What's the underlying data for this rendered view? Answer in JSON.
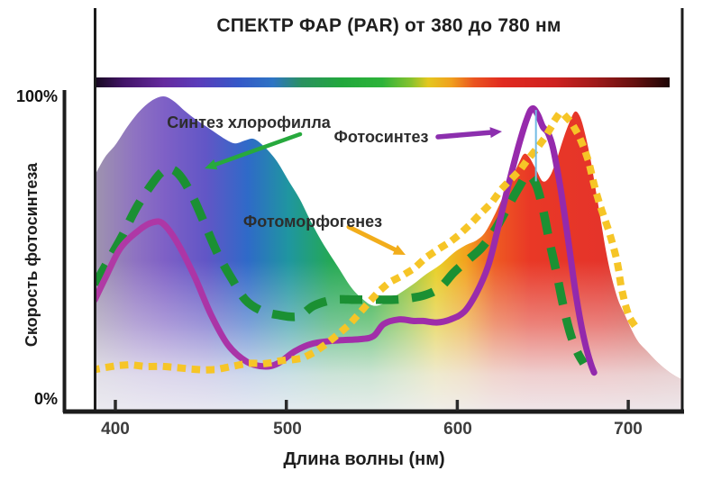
{
  "title": "СПЕКТР ФАР (PAR) от 380 до 780 нм",
  "y_axis": {
    "title": "Скорость фотосинтеза",
    "top_label": "100%",
    "bottom_label": "0%"
  },
  "x_axis": {
    "title": "Длина волны (нм)",
    "ticks": [
      "400",
      "500",
      "600",
      "700"
    ]
  },
  "annotations": [
    {
      "id": "chlorophyll",
      "label": "Синтез хлорофилла",
      "color": "#27a93d"
    },
    {
      "id": "photosynthesis",
      "label": "Фотосинтез",
      "color": "#8c2fae"
    },
    {
      "id": "photomorphogenesis",
      "label": "Фотоморфогенез",
      "color": "#f2ad1b"
    }
  ],
  "colors": {
    "axis": "#1c1c1c",
    "purple_curve": "#9c2fae",
    "green_curve": "#1b9033",
    "yellow_curve": "#f6c527",
    "cyan_marker": "#72bce4",
    "purple_stroke_stops": [
      [
        "0%",
        "#b13aa5"
      ],
      [
        "45%",
        "#a22ea9"
      ],
      [
        "100%",
        "#8c27ae"
      ]
    ],
    "spectrum_bar_stops": [
      [
        "0%",
        "#16091f"
      ],
      [
        "5%",
        "#421467"
      ],
      [
        "12%",
        "#652a9e"
      ],
      [
        "18%",
        "#5b3cba"
      ],
      [
        "25%",
        "#3558c8"
      ],
      [
        "31%",
        "#2e74c4"
      ],
      [
        "36%",
        "#2a9160"
      ],
      [
        "43%",
        "#22a83c"
      ],
      [
        "50%",
        "#2db33a"
      ],
      [
        "55%",
        "#86c22e"
      ],
      [
        "58%",
        "#e4c71e"
      ],
      [
        "62%",
        "#f0a01e"
      ],
      [
        "66%",
        "#ea5420"
      ],
      [
        "71%",
        "#e12a20"
      ],
      [
        "80%",
        "#ce2220"
      ],
      [
        "87%",
        "#a01a1a"
      ],
      [
        "94%",
        "#64100f"
      ],
      [
        "100%",
        "#1d0505"
      ]
    ],
    "fill_stops": [
      [
        "0%",
        "#9f94ae"
      ],
      [
        "7%",
        "#8e72c2"
      ],
      [
        "12%",
        "#7e60c6"
      ],
      [
        "19%",
        "#6156c6"
      ],
      [
        "26%",
        "#2f6ac8"
      ],
      [
        "33%",
        "#1f96a0"
      ],
      [
        "40%",
        "#24a856"
      ],
      [
        "47%",
        "#2cb041"
      ],
      [
        "53%",
        "#8cc437"
      ],
      [
        "58%",
        "#e8cf22"
      ],
      [
        "63%",
        "#f2a41e"
      ],
      [
        "68%",
        "#ee5a22"
      ],
      [
        "74%",
        "#e93826"
      ],
      [
        "86%",
        "#e5342a"
      ],
      [
        "94%",
        "#cf4034"
      ],
      [
        "100%",
        "#c4524a"
      ]
    ]
  },
  "chart_data": {
    "type": "line",
    "title": "СПЕКТР ФАР (PAR) от 380 до 780 нм",
    "xlabel": "Длина волны (нм)",
    "ylabel": "Скорость фотосинтеза",
    "xlim": [
      388,
      732
    ],
    "ylim": [
      0,
      100
    ],
    "x_ticks": [
      400,
      500,
      600,
      700
    ],
    "y_ticks_pct": [
      0,
      100
    ],
    "grid": false,
    "legend_position": "inline-annotations",
    "spectrum_bar_range_nm": [
      380,
      780
    ],
    "series": [
      {
        "name": "Фотосинтез",
        "style": "solid",
        "color": "#9c2fae",
        "points": [
          [
            388,
            33
          ],
          [
            394,
            40
          ],
          [
            403,
            50
          ],
          [
            414,
            56
          ],
          [
            422,
            58.5
          ],
          [
            428,
            58
          ],
          [
            436,
            52
          ],
          [
            446,
            41
          ],
          [
            456,
            28
          ],
          [
            466,
            18
          ],
          [
            477,
            12.5
          ],
          [
            487,
            11
          ],
          [
            495,
            12
          ],
          [
            505,
            16
          ],
          [
            515,
            18.5
          ],
          [
            528,
            19.5
          ],
          [
            543,
            20
          ],
          [
            551,
            21
          ],
          [
            557,
            25
          ],
          [
            566,
            26.5
          ],
          [
            574,
            26
          ],
          [
            580,
            26
          ],
          [
            588,
            25.5
          ],
          [
            596,
            26.5
          ],
          [
            604,
            29
          ],
          [
            611,
            35
          ],
          [
            618,
            44
          ],
          [
            624,
            57
          ],
          [
            630,
            71
          ],
          [
            636,
            84
          ],
          [
            641,
            93
          ],
          [
            644,
            96
          ],
          [
            647,
            94
          ],
          [
            650,
            90
          ],
          [
            653,
            88
          ],
          [
            656,
            83
          ],
          [
            660,
            71
          ],
          [
            663,
            60
          ],
          [
            666,
            48
          ],
          [
            669,
            36
          ],
          [
            672,
            26
          ],
          [
            675,
            18
          ],
          [
            678,
            12
          ],
          [
            680,
            9
          ]
        ]
      },
      {
        "name": "Синтез хлорофилла",
        "style": "dashed",
        "color": "#1b9033",
        "points": [
          [
            388,
            38
          ],
          [
            396,
            46
          ],
          [
            404,
            54
          ],
          [
            412,
            63
          ],
          [
            420,
            70
          ],
          [
            427,
            75
          ],
          [
            433,
            76
          ],
          [
            439,
            73
          ],
          [
            446,
            66
          ],
          [
            453,
            57
          ],
          [
            460,
            48
          ],
          [
            468,
            40
          ],
          [
            476,
            33
          ],
          [
            485,
            29.5
          ],
          [
            495,
            28
          ],
          [
            507,
            27.5
          ],
          [
            516,
            31
          ],
          [
            528,
            33
          ],
          [
            540,
            33
          ],
          [
            552,
            33
          ],
          [
            563,
            33
          ],
          [
            572,
            33.5
          ],
          [
            581,
            34.5
          ],
          [
            590,
            37
          ],
          [
            598,
            42
          ],
          [
            606,
            46
          ],
          [
            614,
            50
          ],
          [
            622,
            56
          ],
          [
            629,
            63
          ],
          [
            636,
            70
          ],
          [
            641,
            74
          ],
          [
            646,
            71
          ],
          [
            650,
            63
          ],
          [
            654,
            52
          ],
          [
            658,
            42
          ],
          [
            662,
            31
          ],
          [
            666,
            22
          ],
          [
            670,
            16
          ],
          [
            674,
            12
          ]
        ]
      },
      {
        "name": "Фотоморфогенез",
        "style": "dotted",
        "color": "#f6c527",
        "points": [
          [
            388,
            10
          ],
          [
            398,
            11
          ],
          [
            408,
            11.5
          ],
          [
            418,
            11
          ],
          [
            428,
            11
          ],
          [
            438,
            10.5
          ],
          [
            448,
            10
          ],
          [
            458,
            10
          ],
          [
            468,
            11
          ],
          [
            478,
            12
          ],
          [
            488,
            12
          ],
          [
            498,
            13
          ],
          [
            507,
            13.5
          ],
          [
            514,
            15
          ],
          [
            521,
            17.5
          ],
          [
            529,
            21
          ],
          [
            537,
            25
          ],
          [
            545,
            30
          ],
          [
            553,
            35
          ],
          [
            560,
            38.5
          ],
          [
            568,
            41
          ],
          [
            575,
            43.5
          ],
          [
            582,
            47
          ],
          [
            590,
            50
          ],
          [
            598,
            53
          ],
          [
            606,
            57
          ],
          [
            613,
            61
          ],
          [
            620,
            65
          ],
          [
            626,
            69.5
          ],
          [
            632,
            73
          ],
          [
            637,
            76
          ],
          [
            641,
            79
          ],
          [
            646,
            82.5
          ],
          [
            650,
            85.5
          ],
          [
            654,
            89
          ],
          [
            658,
            93
          ],
          [
            661,
            94.5
          ],
          [
            664,
            93
          ],
          [
            667,
            91
          ],
          [
            671,
            87
          ],
          [
            674,
            83
          ],
          [
            677,
            78
          ],
          [
            680,
            71
          ],
          [
            683,
            65
          ],
          [
            686,
            60
          ],
          [
            689,
            55
          ],
          [
            692,
            49
          ],
          [
            694,
            44
          ],
          [
            696,
            37
          ],
          [
            699,
            30
          ],
          [
            702,
            26
          ],
          [
            705,
            24
          ],
          [
            708,
            23
          ]
        ]
      },
      {
        "name": "Спектр ФАР (фон-заливка)",
        "style": "area-fill",
        "color": "spectrum-gradient",
        "points": [
          [
            388,
            74
          ],
          [
            394,
            80
          ],
          [
            400,
            84
          ],
          [
            407,
            90
          ],
          [
            414,
            95
          ],
          [
            421,
            98.5
          ],
          [
            428,
            100
          ],
          [
            434,
            98.5
          ],
          [
            441,
            95
          ],
          [
            448,
            92
          ],
          [
            456,
            89
          ],
          [
            464,
            86
          ],
          [
            470,
            84.5
          ],
          [
            476,
            85.5
          ],
          [
            481,
            86
          ],
          [
            487,
            83.5
          ],
          [
            494,
            79
          ],
          [
            501,
            72.5
          ],
          [
            508,
            66
          ],
          [
            515,
            58
          ],
          [
            522,
            51
          ],
          [
            530,
            44
          ],
          [
            538,
            37
          ],
          [
            545,
            33
          ],
          [
            551,
            31
          ],
          [
            558,
            32
          ],
          [
            566,
            35
          ],
          [
            574,
            38
          ],
          [
            582,
            41.5
          ],
          [
            590,
            44.5
          ],
          [
            598,
            48.5
          ],
          [
            605,
            51
          ],
          [
            611,
            52.5
          ],
          [
            616,
            55
          ],
          [
            621,
            60
          ],
          [
            626,
            66
          ],
          [
            631,
            72
          ],
          [
            636,
            78
          ],
          [
            639,
            81
          ],
          [
            642,
            80
          ],
          [
            646,
            76
          ],
          [
            650,
            72
          ],
          [
            654,
            73.5
          ],
          [
            658,
            79
          ],
          [
            662,
            86
          ],
          [
            666,
            92
          ],
          [
            669,
            95
          ],
          [
            672,
            93
          ],
          [
            675,
            87
          ],
          [
            678,
            79
          ],
          [
            681,
            69
          ],
          [
            684,
            59
          ],
          [
            687,
            49
          ],
          [
            690,
            41
          ],
          [
            694,
            33
          ],
          [
            698,
            28
          ],
          [
            702,
            23
          ],
          [
            706,
            19
          ],
          [
            711,
            16
          ],
          [
            716,
            13
          ],
          [
            722,
            10
          ],
          [
            727,
            8
          ],
          [
            732,
            6.5
          ]
        ]
      }
    ],
    "marker_line": {
      "x_nm": 646,
      "from_pct": 95.5,
      "to_pct": 72,
      "color": "#72bce4"
    }
  }
}
